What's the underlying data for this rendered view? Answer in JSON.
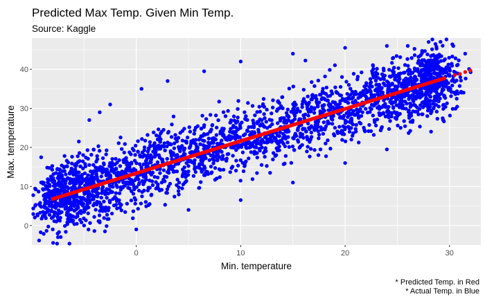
{
  "chart_data": {
    "type": "scatter",
    "title": "Predicted Max Temp. Given Min Temp.",
    "subtitle": "Source: Kaggle",
    "xlabel": "Min. temperature",
    "ylabel": "Max. temperature",
    "xlim": [
      -10,
      33
    ],
    "ylim": [
      -5,
      48
    ],
    "x_ticks": [
      0,
      10,
      20,
      30
    ],
    "y_ticks": [
      0,
      10,
      20,
      30,
      40
    ],
    "x_tick_labels": [
      "0",
      "10",
      "20",
      "30"
    ],
    "y_tick_labels": [
      "0",
      "10",
      "20",
      "30",
      "40"
    ],
    "grid": true,
    "captions": [
      "* Predicted Temp. in Red",
      "* Actual Temp. in  Blue"
    ],
    "colors": {
      "actual": "#0000ff",
      "predicted": "#ff0000",
      "panel": "#ebebeb",
      "grid": "#ffffff"
    },
    "series": [
      {
        "name": "Actual Temp.",
        "color": "#0000ff",
        "cloud": {
          "x_range": [
            -8,
            29.5
          ],
          "y_fit": [
            7.0,
            38.0
          ],
          "spread": 14
        },
        "points": [
          {
            "x": -8.0,
            "y": -1.0
          },
          {
            "x": -7.5,
            "y": -3.0
          },
          {
            "x": -5.5,
            "y": 21.5
          },
          {
            "x": -4.5,
            "y": 27.0
          },
          {
            "x": -3.5,
            "y": 29.0
          },
          {
            "x": -2.5,
            "y": 31.0
          },
          {
            "x": 0.5,
            "y": 35.0
          },
          {
            "x": 3.0,
            "y": 37.0
          },
          {
            "x": 6.5,
            "y": 39.5
          },
          {
            "x": 10.0,
            "y": 42.0
          },
          {
            "x": 15.0,
            "y": 44.0
          },
          {
            "x": 20.0,
            "y": 45.5
          },
          {
            "x": 24.0,
            "y": 46.0
          },
          {
            "x": 26.0,
            "y": 46.0
          },
          {
            "x": 28.0,
            "y": 47.0
          },
          {
            "x": 30.0,
            "y": 40.0
          },
          {
            "x": 31.5,
            "y": 44.0
          },
          {
            "x": 29.5,
            "y": 33.0
          },
          {
            "x": 24.0,
            "y": 19.5
          },
          {
            "x": 20.0,
            "y": 16.0
          },
          {
            "x": 15.0,
            "y": 11.0
          },
          {
            "x": 10.0,
            "y": 6.5
          },
          {
            "x": 5.0,
            "y": 4.0
          },
          {
            "x": 0.0,
            "y": -1.0
          },
          {
            "x": -3.0,
            "y": -1.5
          },
          {
            "x": -5.0,
            "y": 0.0
          }
        ]
      },
      {
        "name": "Predicted Temp.",
        "color": "#ff0000",
        "line": {
          "x_range": [
            -8,
            29.5
          ],
          "y_range": [
            6.8,
            37.7
          ]
        },
        "points": [
          {
            "x": 30.5,
            "y": 38.5
          },
          {
            "x": 31.0,
            "y": 38.8
          },
          {
            "x": 31.5,
            "y": 39.3
          },
          {
            "x": 32.0,
            "y": 39.7
          }
        ]
      }
    ]
  }
}
